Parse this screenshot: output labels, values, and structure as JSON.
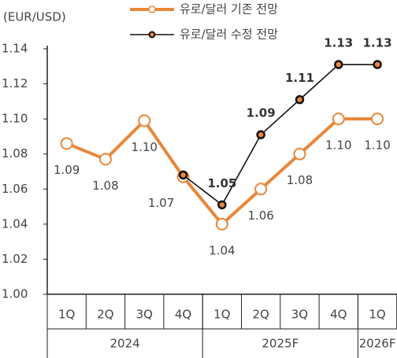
{
  "chart_data": {
    "type": "line",
    "y_label": "(EUR/USD)",
    "categories": [
      "1Q",
      "2Q",
      "3Q",
      "4Q",
      "1Q",
      "2Q",
      "3Q",
      "4Q",
      "1Q"
    ],
    "groups": [
      "2024",
      "2025F",
      "2026F"
    ],
    "series": [
      {
        "name": "유로/달러 기존 전망",
        "color": "#e8873a",
        "values": [
          1.086,
          1.077,
          1.099,
          1.067,
          1.04,
          1.06,
          1.08,
          1.1,
          1.1
        ],
        "value_labels": [
          "1.09",
          "1.08",
          "1.10",
          "1.07",
          "1.04",
          "1.06",
          "1.08",
          "1.10",
          "1.10"
        ]
      },
      {
        "name": "유로/달러 수정 전망",
        "color": "#111111",
        "values": [
          null,
          null,
          null,
          1.068,
          1.051,
          1.091,
          1.111,
          1.131,
          1.131
        ],
        "value_labels": [
          null,
          null,
          null,
          null,
          "1.05",
          "1.09",
          "1.11",
          "1.13",
          "1.13"
        ]
      }
    ],
    "ylim": [
      1.0,
      1.14
    ],
    "yticks": [
      {
        "value": 1.0,
        "label": "1.00"
      },
      1.02,
      1.04,
      1.06,
      1.08,
      {
        "value": 1.1,
        "label": "1.10"
      },
      1.12,
      1.14
    ]
  }
}
